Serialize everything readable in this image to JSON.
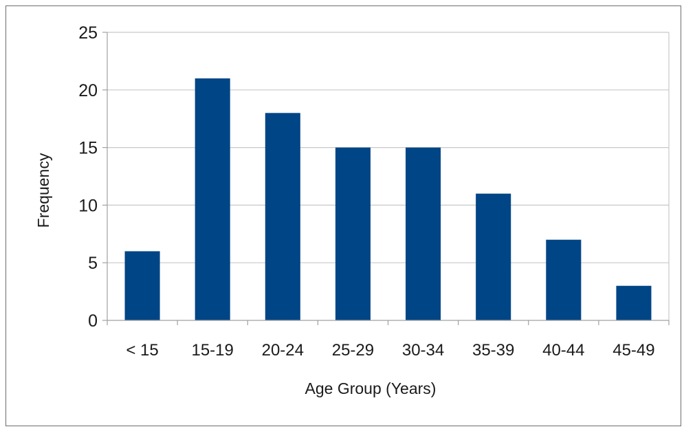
{
  "chart_data": {
    "type": "bar",
    "categories": [
      "< 15",
      "15-19",
      "20-24",
      "25-29",
      "30-34",
      "35-39",
      "40-44",
      "45-49"
    ],
    "values": [
      6,
      21,
      18,
      15,
      15,
      11,
      7,
      3
    ],
    "title": "",
    "xlabel": "Age Group (Years)",
    "ylabel": "Frequency",
    "ylim": [
      0,
      25
    ],
    "yticks": [
      0,
      5,
      10,
      15,
      20,
      25
    ],
    "grid": true,
    "legend": "none",
    "bar_color": "#004586",
    "grid_color": "#c8c8c8",
    "axis_color": "#a0a0a0"
  }
}
